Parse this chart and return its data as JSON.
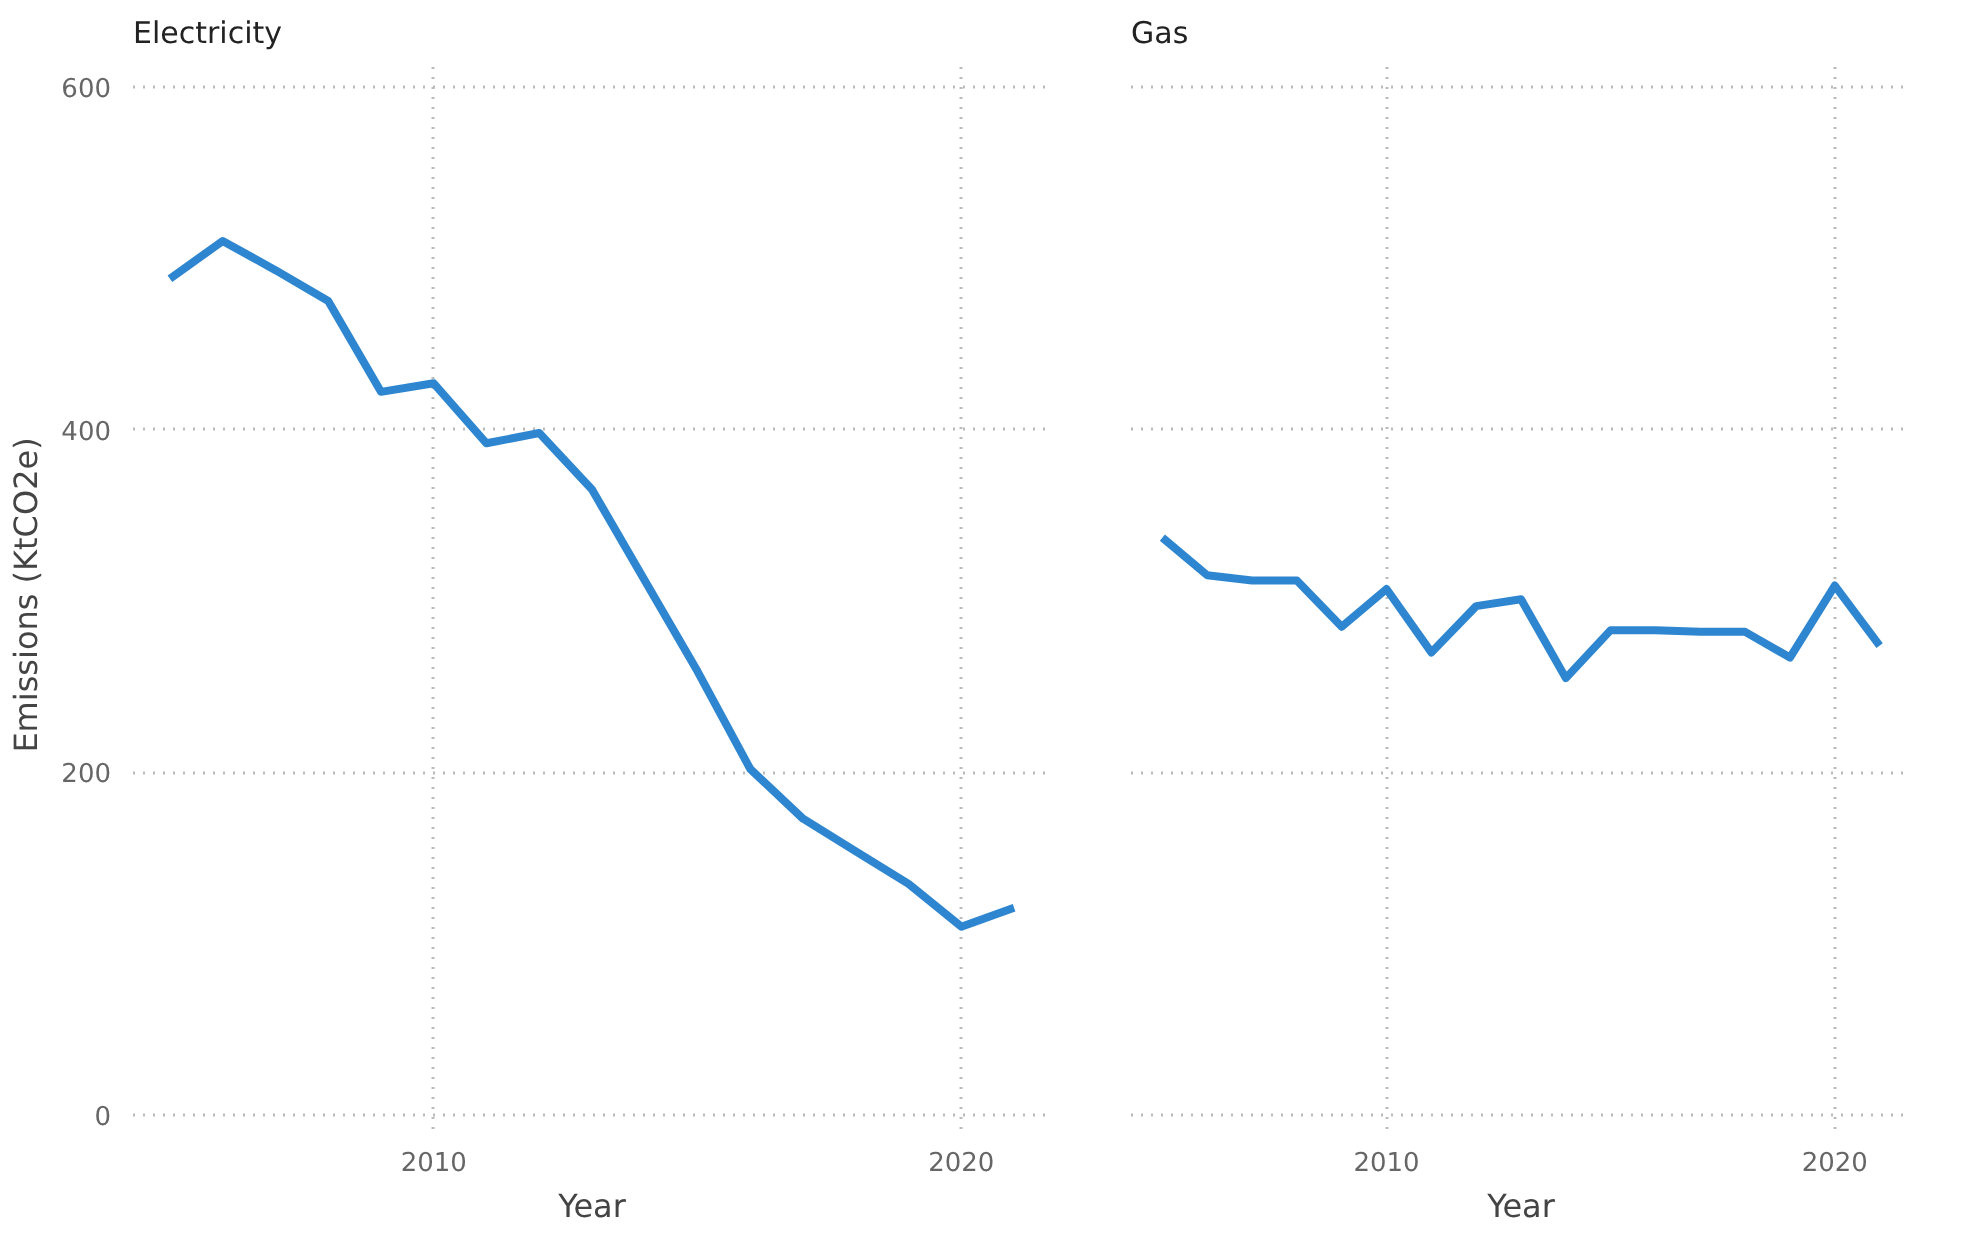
{
  "chart_data": [
    {
      "type": "line",
      "title": "Electricity",
      "xlabel": "Year",
      "ylabel": "Emissions (KtCO2e)",
      "x": [
        2005,
        2006,
        2007,
        2008,
        2009,
        2010,
        2011,
        2012,
        2013,
        2014,
        2015,
        2016,
        2017,
        2018,
        2019,
        2020,
        2021
      ],
      "series": [
        {
          "color": "#2e86d1",
          "values": [
            488,
            510,
            493,
            475,
            422,
            427,
            392,
            398,
            365,
            312,
            259,
            202,
            173,
            154,
            135,
            110,
            121
          ]
        }
      ],
      "xlim": [
        2004.3,
        2021.7
      ],
      "xticks": [
        2010,
        2020
      ],
      "ylim": [
        -8,
        615
      ],
      "yticks": [
        0,
        200,
        400,
        600
      ],
      "grid": true,
      "marker": "none",
      "line_style": "solid"
    },
    {
      "type": "line",
      "title": "Gas",
      "xlabel": "Year",
      "x": [
        2005,
        2006,
        2007,
        2008,
        2009,
        2010,
        2011,
        2012,
        2013,
        2014,
        2015,
        2016,
        2017,
        2018,
        2019,
        2020,
        2021
      ],
      "series": [
        {
          "color": "#2e86d1",
          "values": [
            337,
            315,
            312,
            312,
            285,
            307,
            270,
            297,
            301,
            255,
            283,
            283,
            282,
            282,
            267,
            309,
            274
          ]
        }
      ],
      "xlim": [
        2004.3,
        2021.7
      ],
      "xticks": [
        2010,
        2020
      ],
      "ylim": [
        -8,
        615
      ],
      "yticks": [
        0,
        200,
        400,
        600
      ],
      "grid": true,
      "marker": "none",
      "line_style": "solid",
      "tick_labels": "x"
    }
  ]
}
